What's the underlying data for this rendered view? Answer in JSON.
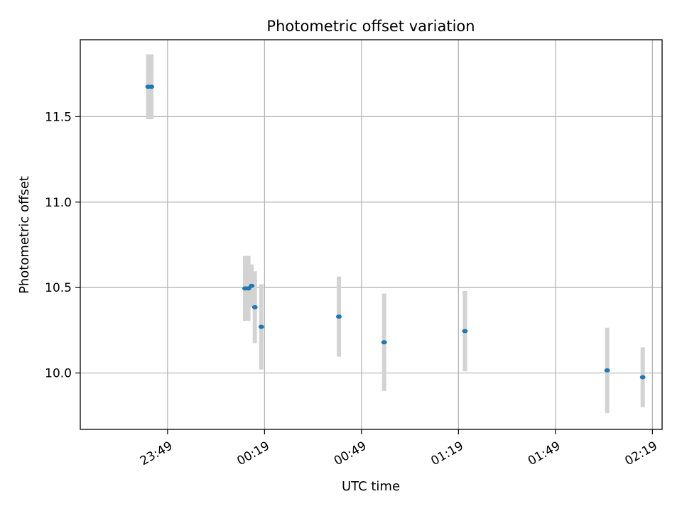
{
  "chart_data": {
    "type": "scatter",
    "title": "Photometric offset variation",
    "xlabel": "UTC time",
    "ylabel": "Photometric offset",
    "grid": true,
    "x_ticks": [
      "23:49",
      "00:19",
      "00:49",
      "01:19",
      "01:49",
      "02:19"
    ],
    "y_ticks": [
      "10.0",
      "10.5",
      "11.0",
      "11.5"
    ],
    "xlim": [
      "23:22",
      "02:22"
    ],
    "ylim": [
      9.67,
      11.95
    ],
    "colors": {
      "point": "#1f77b4",
      "errorbar": "#d3d3d3",
      "grid": "#b0b0b0"
    },
    "points": [
      {
        "x": "23:43",
        "y": 11.675,
        "err": 0.19
      },
      {
        "x": "23:44",
        "y": 11.675,
        "err": 0.19
      },
      {
        "x": "00:13",
        "y": 10.495,
        "err": 0.19
      },
      {
        "x": "00:14",
        "y": 10.495,
        "err": 0.19
      },
      {
        "x": "00:15",
        "y": 10.51,
        "err": 0.125
      },
      {
        "x": "00:16",
        "y": 10.385,
        "err": 0.21
      },
      {
        "x": "00:18",
        "y": 10.27,
        "err": 0.25
      },
      {
        "x": "00:42",
        "y": 10.33,
        "err": 0.235
      },
      {
        "x": "00:56",
        "y": 10.18,
        "err": 0.285
      },
      {
        "x": "01:21",
        "y": 10.245,
        "err": 0.235
      },
      {
        "x": "02:05",
        "y": 10.015,
        "err": 0.25
      },
      {
        "x": "02:16",
        "y": 9.975,
        "err": 0.175
      }
    ]
  }
}
